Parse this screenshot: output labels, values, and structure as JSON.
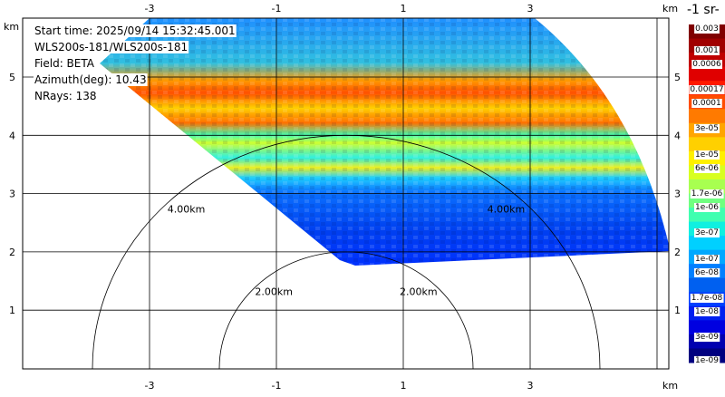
{
  "chart_data": {
    "type": "heatmap",
    "title": "",
    "info_lines": [
      "Start time: 2025/09/14 15:32:45.001",
      "WLS200s-181/WLS200s-181",
      "Field: BETA",
      "Azimuth(deg): 10.43",
      "NRays: 138"
    ],
    "x_unit": "km",
    "y_unit": "km",
    "x_ticks": [
      "-3",
      "-1",
      "1",
      "3"
    ],
    "x_tick_values": [
      -3,
      -1,
      1,
      3
    ],
    "y_ticks": [
      "1",
      "2",
      "3",
      "4",
      "5"
    ],
    "y_tick_values": [
      1,
      2,
      3,
      4,
      5
    ],
    "xlim": [
      -5,
      5.2
    ],
    "ylim": [
      0,
      6
    ],
    "grid": true,
    "range_rings": [
      {
        "label": "2.00km",
        "radius": 2
      },
      {
        "label": "4.00km",
        "radius": 4
      }
    ],
    "colorbar": {
      "unit_label": "-1 sr-",
      "labels": [
        "0.003",
        "0.001",
        "0.0006",
        "0.00017",
        "0.0001",
        "3e-05",
        "1e-05",
        "6e-06",
        "1.7e-06",
        "1e-06",
        "3e-07",
        "1e-07",
        "6e-08",
        "1.7e-08",
        "1e-08",
        "3e-09",
        "1e-09"
      ],
      "colors": [
        "#800000",
        "#a00000",
        "#c00000",
        "#e00000",
        "#ff1a00",
        "#ff4c00",
        "#ff7a00",
        "#ffa500",
        "#ffd000",
        "#fff000",
        "#d8ff20",
        "#a8ff50",
        "#70ff80",
        "#40ffb0",
        "#10f0e0",
        "#00d0ff",
        "#00a8ff",
        "#0080ff",
        "#0060f0",
        "#0040ff",
        "#0020f0",
        "#0000e0",
        "#0000b0",
        "#000080"
      ]
    }
  }
}
